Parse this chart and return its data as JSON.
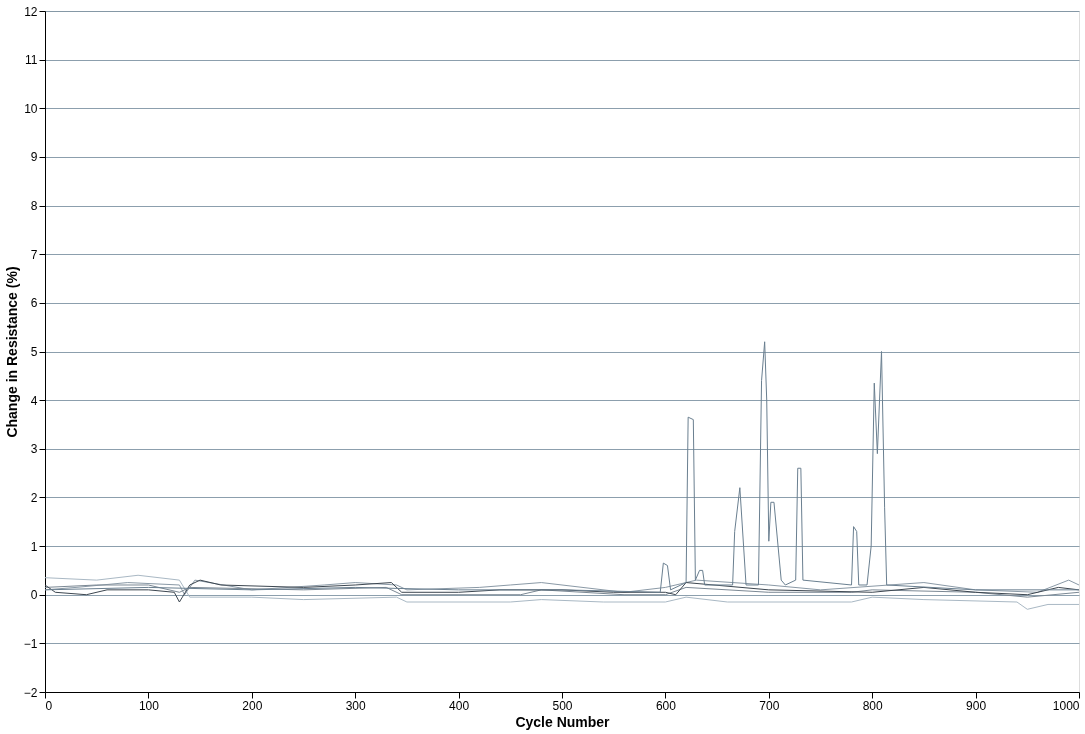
{
  "chart_data": {
    "type": "line",
    "xlabel": "Cycle Number",
    "ylabel": "Change in Resistance (%)",
    "xlim": [
      0,
      1000
    ],
    "ylim": [
      -2,
      12
    ],
    "xticks": [
      0,
      100,
      200,
      300,
      400,
      500,
      600,
      700,
      800,
      900,
      1000
    ],
    "yticks": [
      -2,
      -1,
      0,
      1,
      2,
      3,
      4,
      5,
      6,
      7,
      8,
      9,
      10,
      11,
      12
    ],
    "grid": "y",
    "legend": false,
    "marker": "none",
    "line_style": "solid",
    "series": [
      {
        "color": "#a9b8c4",
        "x": [
          0,
          50,
          90,
          130,
          140,
          200,
          250,
          340,
          350,
          450,
          480,
          540,
          600,
          620,
          660,
          780,
          800,
          850,
          940,
          950,
          970,
          1000
        ],
        "values": [
          0.35,
          0.3,
          0.4,
          0.3,
          -0.05,
          -0.05,
          -0.1,
          -0.05,
          -0.15,
          -0.15,
          -0.1,
          -0.15,
          -0.15,
          -0.05,
          -0.15,
          -0.15,
          -0.05,
          -0.1,
          -0.15,
          -0.3,
          -0.2,
          -0.2
        ]
      },
      {
        "color": "#8a99a6",
        "x": [
          0,
          30,
          80,
          130,
          135,
          145,
          200,
          270,
          300,
          340,
          350,
          420,
          450,
          480,
          500,
          560,
          600,
          630,
          700,
          750,
          850,
          900,
          960,
          990,
          1000
        ],
        "values": [
          0.1,
          0.15,
          0.25,
          0.2,
          0,
          0.3,
          0.1,
          0.2,
          0.25,
          0.2,
          0.1,
          0.15,
          0.2,
          0.25,
          0.2,
          0.05,
          0.15,
          0.3,
          0.2,
          0.1,
          0.25,
          0.1,
          0.05,
          0.3,
          0.2
        ]
      },
      {
        "color": "#7b8894",
        "x": [
          0,
          50,
          100,
          130,
          140,
          250,
          330,
          345,
          460,
          480,
          560,
          600,
          620,
          700,
          780,
          800,
          900,
          950,
          1000
        ],
        "values": [
          0.15,
          0.2,
          0.2,
          0.05,
          0.15,
          0.1,
          0.15,
          0,
          0,
          0.1,
          0,
          0,
          0.15,
          0.05,
          0.05,
          0.1,
          0.05,
          -0.05,
          0.05
        ]
      },
      {
        "color": "#3c4650",
        "x": [
          0,
          10,
          40,
          60,
          100,
          125,
          130,
          140,
          150,
          170,
          250,
          300,
          335,
          345,
          400,
          440,
          500,
          550,
          600,
          610,
          620,
          700,
          800,
          850,
          900,
          950,
          980,
          1000
        ],
        "values": [
          0.2,
          0.05,
          0,
          0.1,
          0.1,
          0.05,
          -0.15,
          0.2,
          0.3,
          0.2,
          0.15,
          0.2,
          0.25,
          0.05,
          0.05,
          0.1,
          0.1,
          0.05,
          0.05,
          0,
          0.25,
          0.1,
          0.05,
          0.15,
          0.05,
          0,
          0.15,
          0.1
        ]
      },
      {
        "color": "#6a7f90",
        "x": [
          0,
          100,
          200,
          300,
          400,
          500,
          595,
          598,
          602,
          605,
          620,
          622,
          627,
          629,
          633,
          636,
          638,
          665,
          667,
          672,
          678,
          690,
          693,
          696,
          698,
          700,
          702,
          705,
          712,
          716,
          726,
          728,
          731,
          733,
          780,
          782,
          785,
          787,
          795,
          799,
          802,
          805,
          809,
          812,
          814,
          900,
          1000
        ],
        "values": [
          0.1,
          0.15,
          0.1,
          0.15,
          0.1,
          0.1,
          0.05,
          0.65,
          0.6,
          0.1,
          0.25,
          3.65,
          3.6,
          0.3,
          0.5,
          0.5,
          0.2,
          0.2,
          1.3,
          2.2,
          0.2,
          0.2,
          4.4,
          5.2,
          4.0,
          1.1,
          1.9,
          1.9,
          0.3,
          0.2,
          0.3,
          2.6,
          2.6,
          0.3,
          0.2,
          1.4,
          1.3,
          0.2,
          0.2,
          1.0,
          4.35,
          2.9,
          5.0,
          1.8,
          0.2,
          0.1,
          0.1
        ]
      }
    ]
  }
}
